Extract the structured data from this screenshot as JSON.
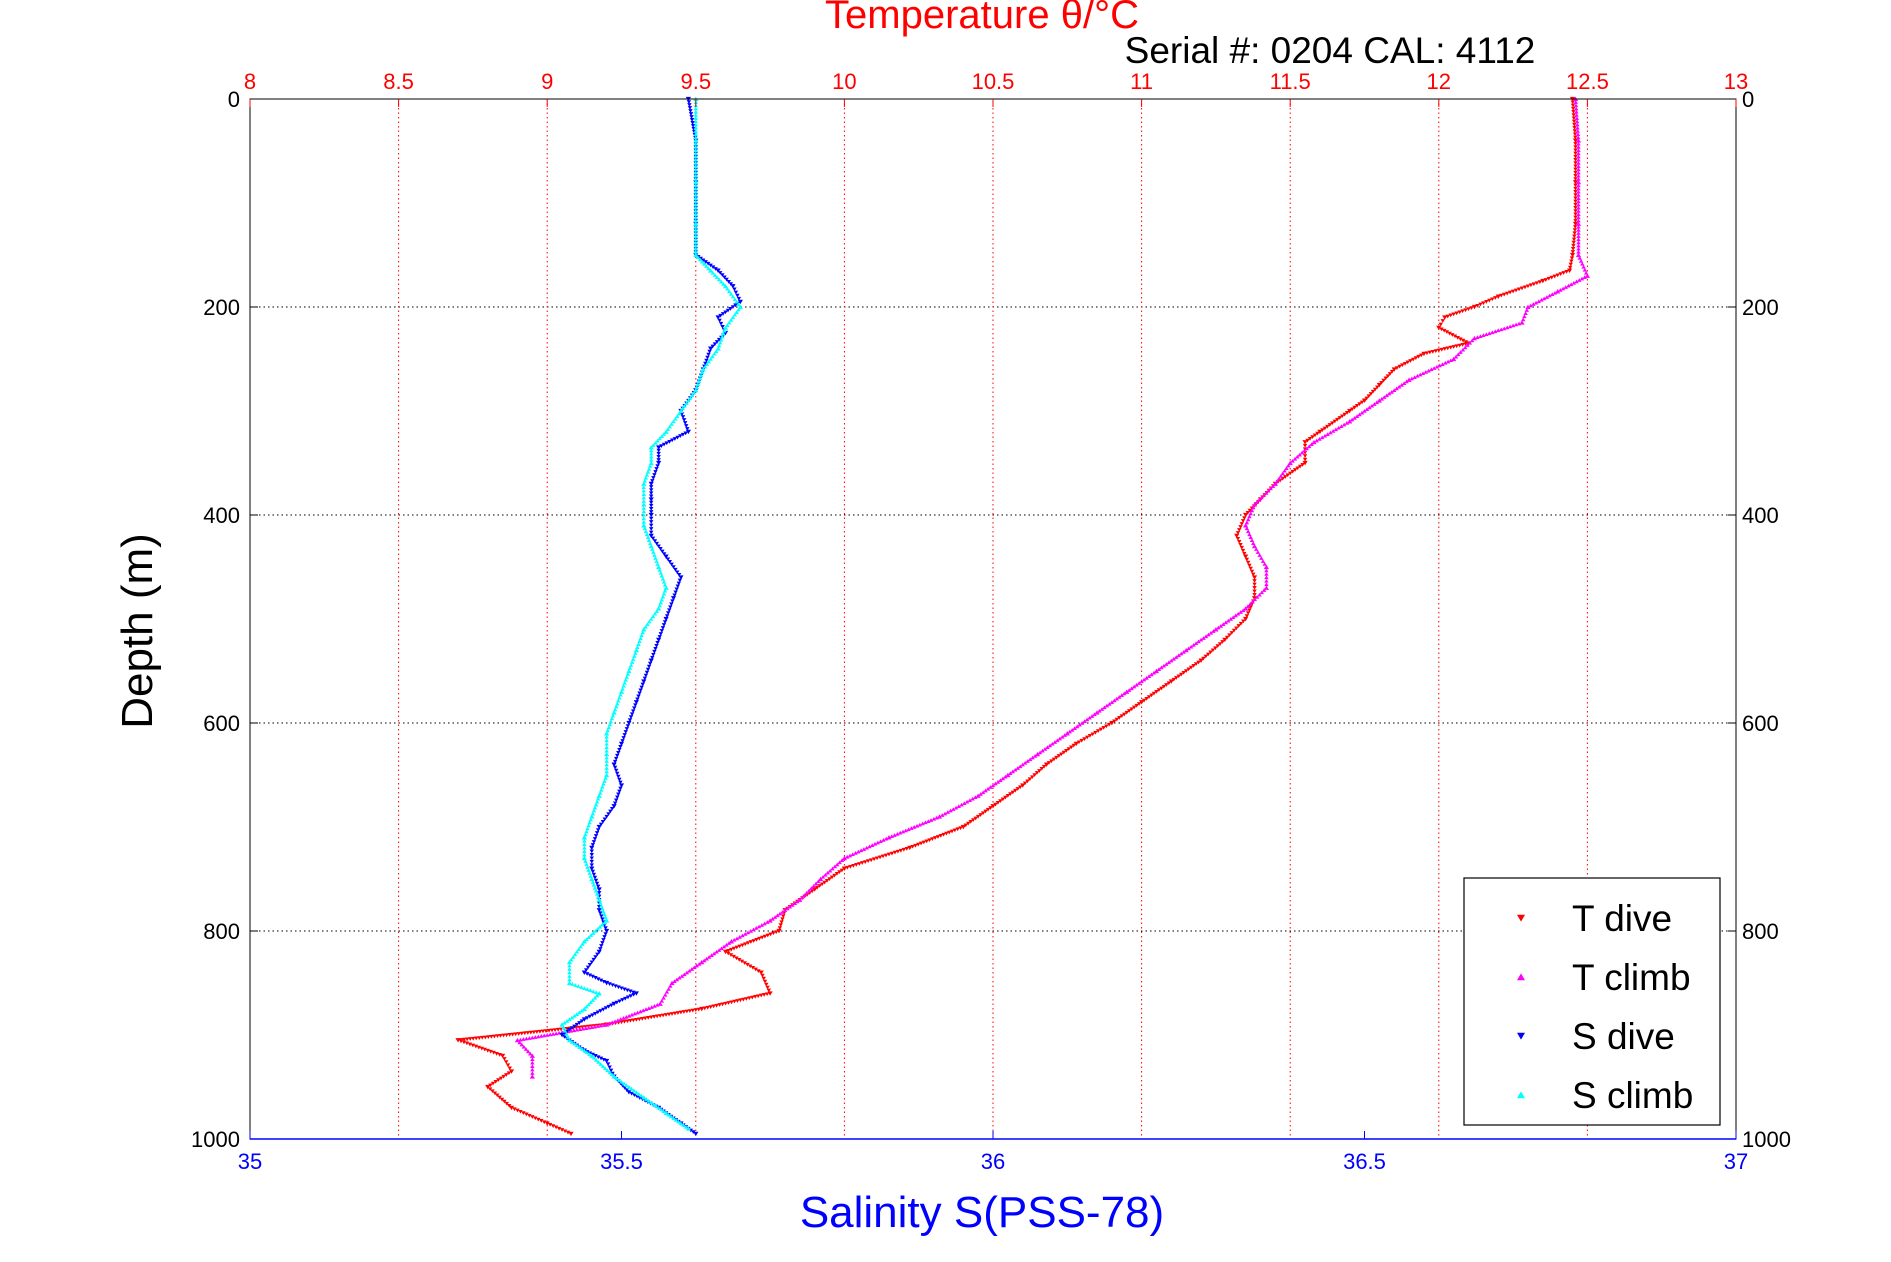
{
  "chart_data": {
    "type": "scatter",
    "title": "Temperature θ/°C",
    "subtitle": "Serial #: 0204  CAL: 4112",
    "ylabel": "Depth (m)",
    "xlabel": "Salinity S(PSS-78)",
    "x_bottom": {
      "label": "Salinity S(PSS-78)",
      "lim": [
        35,
        37
      ],
      "ticks": [
        "35",
        "35.5",
        "36",
        "36.5",
        "37"
      ],
      "color": "#0000ff"
    },
    "x_top": {
      "label": "Temperature θ/°C",
      "lim": [
        8,
        13
      ],
      "ticks": [
        "8",
        "8.5",
        "9",
        "9.5",
        "10",
        "10.5",
        "11",
        "11.5",
        "12",
        "12.5",
        "13"
      ],
      "color": "#ff0000"
    },
    "y": {
      "label": "Depth (m)",
      "lim": [
        0,
        1000
      ],
      "reversed": true,
      "ticks": [
        "0",
        "200",
        "400",
        "600",
        "800",
        "1000"
      ]
    },
    "grid": true,
    "legend": {
      "position": "bottom-right",
      "entries": [
        "T dive",
        "T climb",
        "S dive",
        "S climb"
      ]
    },
    "series": [
      {
        "name": "T dive",
        "axis": "temperature",
        "color": "#ff0000",
        "marker": "triangle-down",
        "points": [
          [
            12.45,
            0
          ],
          [
            12.46,
            40
          ],
          [
            12.46,
            80
          ],
          [
            12.46,
            120
          ],
          [
            12.45,
            150
          ],
          [
            12.44,
            165
          ],
          [
            12.35,
            175
          ],
          [
            12.2,
            190
          ],
          [
            12.12,
            200
          ],
          [
            12.02,
            210
          ],
          [
            12.0,
            220
          ],
          [
            12.1,
            235
          ],
          [
            11.95,
            245
          ],
          [
            11.85,
            260
          ],
          [
            11.8,
            275
          ],
          [
            11.75,
            290
          ],
          [
            11.7,
            300
          ],
          [
            11.6,
            320
          ],
          [
            11.55,
            330
          ],
          [
            11.55,
            350
          ],
          [
            11.45,
            370
          ],
          [
            11.4,
            385
          ],
          [
            11.35,
            400
          ],
          [
            11.32,
            420
          ],
          [
            11.35,
            440
          ],
          [
            11.38,
            460
          ],
          [
            11.38,
            480
          ],
          [
            11.35,
            500
          ],
          [
            11.28,
            520
          ],
          [
            11.2,
            540
          ],
          [
            11.1,
            560
          ],
          [
            11.0,
            580
          ],
          [
            10.9,
            600
          ],
          [
            10.78,
            620
          ],
          [
            10.68,
            640
          ],
          [
            10.6,
            660
          ],
          [
            10.5,
            680
          ],
          [
            10.4,
            700
          ],
          [
            10.22,
            720
          ],
          [
            10.0,
            740
          ],
          [
            9.9,
            760
          ],
          [
            9.8,
            780
          ],
          [
            9.78,
            800
          ],
          [
            9.6,
            820
          ],
          [
            9.72,
            840
          ],
          [
            9.75,
            860
          ],
          [
            9.52,
            875
          ],
          [
            9.2,
            890
          ],
          [
            8.7,
            905
          ],
          [
            8.85,
            920
          ],
          [
            8.88,
            935
          ],
          [
            8.8,
            950
          ],
          [
            8.88,
            970
          ],
          [
            9.0,
            985
          ],
          [
            9.08,
            995
          ]
        ]
      },
      {
        "name": "T climb",
        "axis": "temperature",
        "color": "#ff00ff",
        "marker": "triangle-up",
        "points": [
          [
            12.46,
            0
          ],
          [
            12.47,
            40
          ],
          [
            12.47,
            80
          ],
          [
            12.47,
            120
          ],
          [
            12.47,
            150
          ],
          [
            12.5,
            170
          ],
          [
            12.4,
            185
          ],
          [
            12.3,
            200
          ],
          [
            12.28,
            215
          ],
          [
            12.12,
            230
          ],
          [
            12.05,
            250
          ],
          [
            11.9,
            270
          ],
          [
            11.8,
            290
          ],
          [
            11.7,
            310
          ],
          [
            11.58,
            330
          ],
          [
            11.5,
            350
          ],
          [
            11.45,
            370
          ],
          [
            11.38,
            390
          ],
          [
            11.35,
            410
          ],
          [
            11.38,
            430
          ],
          [
            11.42,
            450
          ],
          [
            11.42,
            470
          ],
          [
            11.35,
            490
          ],
          [
            11.25,
            510
          ],
          [
            11.15,
            530
          ],
          [
            11.05,
            550
          ],
          [
            10.95,
            570
          ],
          [
            10.85,
            590
          ],
          [
            10.75,
            610
          ],
          [
            10.65,
            630
          ],
          [
            10.55,
            650
          ],
          [
            10.45,
            670
          ],
          [
            10.32,
            690
          ],
          [
            10.15,
            710
          ],
          [
            10.0,
            730
          ],
          [
            9.92,
            750
          ],
          [
            9.85,
            770
          ],
          [
            9.75,
            790
          ],
          [
            9.62,
            810
          ],
          [
            9.52,
            830
          ],
          [
            9.42,
            850
          ],
          [
            9.38,
            870
          ],
          [
            9.2,
            890
          ],
          [
            8.9,
            905
          ],
          [
            8.95,
            920
          ],
          [
            8.95,
            940
          ]
        ]
      },
      {
        "name": "S dive",
        "axis": "salinity",
        "color": "#0000ff",
        "marker": "triangle-down",
        "points": [
          [
            35.59,
            0
          ],
          [
            35.6,
            40
          ],
          [
            35.6,
            80
          ],
          [
            35.6,
            120
          ],
          [
            35.6,
            150
          ],
          [
            35.63,
            165
          ],
          [
            35.65,
            180
          ],
          [
            35.66,
            195
          ],
          [
            35.63,
            210
          ],
          [
            35.64,
            225
          ],
          [
            35.62,
            240
          ],
          [
            35.61,
            260
          ],
          [
            35.6,
            280
          ],
          [
            35.58,
            300
          ],
          [
            35.59,
            320
          ],
          [
            35.55,
            335
          ],
          [
            35.55,
            350
          ],
          [
            35.54,
            370
          ],
          [
            35.54,
            385
          ],
          [
            35.54,
            400
          ],
          [
            35.54,
            420
          ],
          [
            35.56,
            440
          ],
          [
            35.58,
            460
          ],
          [
            35.57,
            480
          ],
          [
            35.56,
            500
          ],
          [
            35.55,
            520
          ],
          [
            35.54,
            540
          ],
          [
            35.53,
            560
          ],
          [
            35.52,
            580
          ],
          [
            35.51,
            600
          ],
          [
            35.5,
            620
          ],
          [
            35.49,
            640
          ],
          [
            35.5,
            660
          ],
          [
            35.49,
            680
          ],
          [
            35.47,
            700
          ],
          [
            35.46,
            720
          ],
          [
            35.46,
            740
          ],
          [
            35.47,
            760
          ],
          [
            35.47,
            780
          ],
          [
            35.48,
            800
          ],
          [
            35.47,
            820
          ],
          [
            35.45,
            840
          ],
          [
            35.48,
            850
          ],
          [
            35.52,
            860
          ],
          [
            35.49,
            870
          ],
          [
            35.45,
            885
          ],
          [
            35.42,
            900
          ],
          [
            35.45,
            915
          ],
          [
            35.48,
            925
          ],
          [
            35.49,
            940
          ],
          [
            35.51,
            955
          ],
          [
            35.55,
            970
          ],
          [
            35.58,
            985
          ],
          [
            35.6,
            995
          ]
        ]
      },
      {
        "name": "S climb",
        "axis": "salinity",
        "color": "#00ffff",
        "marker": "triangle-up",
        "points": [
          [
            35.6,
            0
          ],
          [
            35.6,
            40
          ],
          [
            35.6,
            80
          ],
          [
            35.6,
            120
          ],
          [
            35.6,
            150
          ],
          [
            35.62,
            165
          ],
          [
            35.64,
            180
          ],
          [
            35.66,
            200
          ],
          [
            35.64,
            220
          ],
          [
            35.63,
            240
          ],
          [
            35.61,
            260
          ],
          [
            35.6,
            280
          ],
          [
            35.58,
            300
          ],
          [
            35.56,
            320
          ],
          [
            35.54,
            335
          ],
          [
            35.54,
            350
          ],
          [
            35.53,
            370
          ],
          [
            35.53,
            390
          ],
          [
            35.53,
            410
          ],
          [
            35.54,
            430
          ],
          [
            35.55,
            450
          ],
          [
            35.56,
            470
          ],
          [
            35.55,
            490
          ],
          [
            35.53,
            510
          ],
          [
            35.52,
            530
          ],
          [
            35.51,
            550
          ],
          [
            35.5,
            570
          ],
          [
            35.49,
            590
          ],
          [
            35.48,
            610
          ],
          [
            35.48,
            630
          ],
          [
            35.48,
            650
          ],
          [
            35.47,
            670
          ],
          [
            35.46,
            690
          ],
          [
            35.45,
            710
          ],
          [
            35.45,
            730
          ],
          [
            35.46,
            750
          ],
          [
            35.47,
            770
          ],
          [
            35.48,
            790
          ],
          [
            35.45,
            810
          ],
          [
            35.43,
            830
          ],
          [
            35.43,
            850
          ],
          [
            35.47,
            860
          ],
          [
            35.45,
            875
          ],
          [
            35.42,
            890
          ],
          [
            35.43,
            905
          ],
          [
            35.46,
            920
          ],
          [
            35.49,
            940
          ],
          [
            35.53,
            960
          ],
          [
            35.56,
            975
          ],
          [
            35.59,
            990
          ]
        ]
      }
    ]
  }
}
